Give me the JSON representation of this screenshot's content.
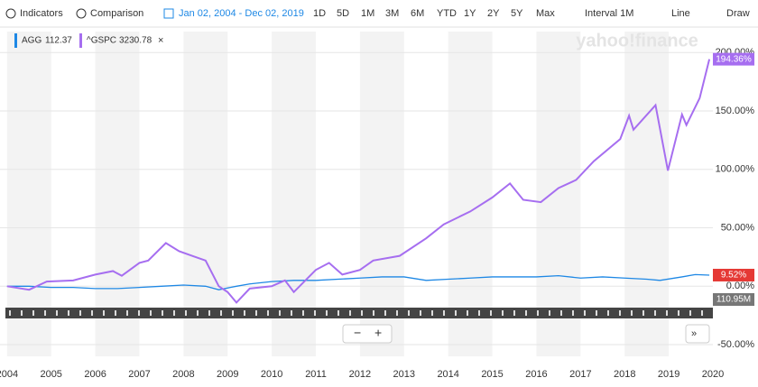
{
  "toolbar": {
    "items": [
      "Indicators",
      "Comparison",
      "Jan 02, 2004 - Dec 02, 2019",
      "1D",
      "5D",
      "1M",
      "3M",
      "6M",
      "YTD",
      "1Y",
      "2Y",
      "5Y",
      "Max",
      "Interval 1M",
      "Line",
      "Draw"
    ]
  },
  "watermark": "yahoo!finance",
  "chart_data": {
    "type": "line",
    "xlim": [
      2003.84,
      2020
    ],
    "xticks": [
      2004,
      2005,
      2006,
      2007,
      2008,
      2009,
      2010,
      2011,
      2012,
      2013,
      2014,
      2015,
      2016,
      2017,
      2018,
      2019,
      2020
    ],
    "ylim": [
      -60,
      218
    ],
    "yticks": [
      {
        "value": 200,
        "label": "200.00%"
      },
      {
        "value": 150,
        "label": "150.00%"
      },
      {
        "value": 100,
        "label": "100.00%"
      },
      {
        "value": 50,
        "label": "50.00%"
      },
      {
        "value": 0,
        "label": "0.00%"
      },
      {
        "value": -50,
        "label": "-50.00%"
      }
    ],
    "grid": true,
    "legend": "top-left",
    "volume_label": "110.95M",
    "series": [
      {
        "name": "AGG",
        "price": 112.37,
        "color": "#1e88e5",
        "label_color": "#e53935",
        "x": [
          2004,
          2004.5,
          2005,
          2005.5,
          2006,
          2006.5,
          2007,
          2007.5,
          2008,
          2008.5,
          2008.8,
          2009.2,
          2009.5,
          2010,
          2010.5,
          2011,
          2011.5,
          2012,
          2012.5,
          2013,
          2013.5,
          2014,
          2014.5,
          2015,
          2015.5,
          2016,
          2016.5,
          2017,
          2017.5,
          2018,
          2018.5,
          2018.8,
          2019.3,
          2019.6,
          2019.92
        ],
        "values": [
          0,
          0,
          -1,
          -1,
          -2,
          -2,
          -1,
          0,
          1,
          0,
          -3,
          0,
          2,
          4,
          5,
          5,
          6,
          7,
          8,
          8,
          5,
          6,
          7,
          8,
          8,
          8,
          9,
          7,
          8,
          7,
          6,
          5,
          8,
          10,
          9.52
        ],
        "value_labels": [
          null,
          null,
          null,
          null,
          null,
          null,
          null,
          null,
          null,
          null,
          null,
          null,
          null,
          null,
          null,
          null,
          null,
          null,
          null,
          null,
          null,
          null,
          null,
          null,
          null,
          null,
          null,
          null,
          null,
          null,
          null,
          null,
          null,
          null,
          "9.52%"
        ]
      },
      {
        "name": "^GSPC",
        "price": 3230.78,
        "color": "#a66ef0",
        "label_color": "#a66ef0",
        "x": [
          2004,
          2004.5,
          2004.9,
          2005.5,
          2006,
          2006.4,
          2006.6,
          2007,
          2007.2,
          2007.6,
          2007.9,
          2008.2,
          2008.5,
          2008.8,
          2009,
          2009.2,
          2009.5,
          2010,
          2010.3,
          2010.5,
          2011,
          2011.3,
          2011.6,
          2012,
          2012.3,
          2012.9,
          2013.5,
          2013.9,
          2014.5,
          2015,
          2015.4,
          2015.7,
          2016.1,
          2016.5,
          2016.9,
          2017.3,
          2017.9,
          2018.1,
          2018.2,
          2018.7,
          2018.98,
          2019.3,
          2019.4,
          2019.7,
          2019.92
        ],
        "values": [
          0,
          -3,
          4,
          5,
          10,
          13,
          9,
          20,
          22,
          37,
          30,
          26,
          22,
          0,
          -5,
          -14,
          -2,
          0,
          5,
          -5,
          14,
          20,
          10,
          14,
          22,
          26,
          41,
          53,
          64,
          76,
          88,
          74,
          72,
          84,
          91,
          107,
          126,
          146,
          134,
          155,
          99,
          147,
          138,
          161,
          194.36
        ],
        "value_labels": [
          null,
          null,
          null,
          null,
          null,
          null,
          null,
          null,
          null,
          null,
          null,
          null,
          null,
          null,
          null,
          null,
          null,
          null,
          null,
          null,
          null,
          null,
          null,
          null,
          null,
          null,
          null,
          null,
          null,
          null,
          null,
          null,
          null,
          null,
          null,
          null,
          null,
          null,
          null,
          null,
          null,
          null,
          null,
          null,
          "194.36%"
        ]
      }
    ]
  }
}
